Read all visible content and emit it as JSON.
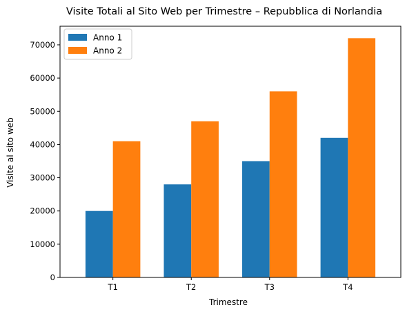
{
  "chart_data": {
    "type": "bar",
    "title": "Visite Totali al Sito Web per Trimestre – Repubblica di Norlandia",
    "xlabel": "Trimestre",
    "ylabel": "Visite al sito web",
    "categories": [
      "T1",
      "T2",
      "T3",
      "T4"
    ],
    "series": [
      {
        "name": "Anno 1",
        "color": "#1f77b4",
        "values": [
          20000,
          28000,
          35000,
          42000
        ]
      },
      {
        "name": "Anno 2",
        "color": "#ff7f0e",
        "values": [
          41000,
          47000,
          56000,
          72000
        ]
      }
    ],
    "ylim": [
      0,
      75600
    ],
    "yticks": [
      0,
      10000,
      20000,
      30000,
      40000,
      50000,
      60000,
      70000
    ],
    "grid": false,
    "legend_position": "top-left"
  }
}
